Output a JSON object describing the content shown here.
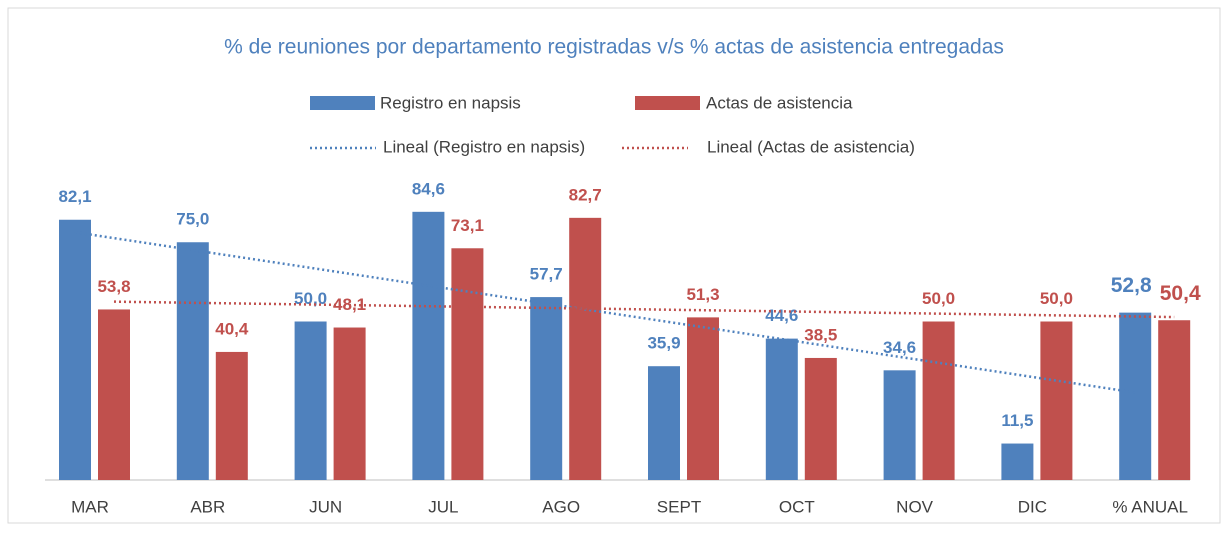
{
  "chart_data": {
    "type": "bar",
    "title": "% de reuniones por departamento registradas v/s % actas de asistencia entregadas",
    "categories": [
      "MAR",
      "ABR",
      "JUN",
      "JUL",
      "AGO",
      "SEPT",
      "OCT",
      "NOV",
      "DIC",
      "% ANUAL"
    ],
    "series": [
      {
        "name": "Registro en napsis",
        "color": "#4f81bd",
        "values": [
          82.1,
          75.0,
          50.0,
          84.6,
          57.7,
          35.9,
          44.6,
          34.6,
          11.5,
          52.8
        ],
        "value_labels": [
          "82,1",
          "75,0",
          "50,0",
          "84,6",
          "57,7",
          "35,9",
          "44,6",
          "34,6",
          "11,5",
          "52,8"
        ]
      },
      {
        "name": "Actas de asistencia",
        "color": "#c0504d",
        "values": [
          53.8,
          40.4,
          48.1,
          73.1,
          82.7,
          51.3,
          38.5,
          50.0,
          50.0,
          50.4
        ],
        "value_labels": [
          "53,8",
          "40,4",
          "48,1",
          "73,1",
          "82,7",
          "51,3",
          "38,5",
          "50,0",
          "50,0",
          "50,4"
        ]
      }
    ],
    "trendlines": [
      "Lineal (Registro en napsis)",
      "Lineal (Actas de asistencia)"
    ],
    "ylim": [
      0,
      90
    ]
  }
}
